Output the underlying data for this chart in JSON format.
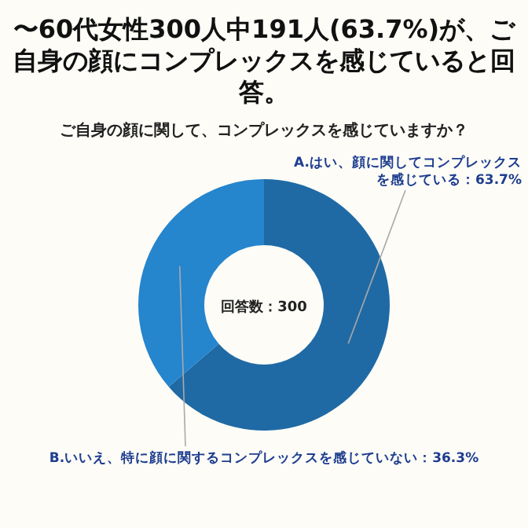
{
  "chart_data": {
    "type": "donut",
    "title": "〜60代女性300人中191人(63.7%)が、ご自身の顔にコンプレックスを感じていると回答。",
    "subtitle": "ご自身の顔に関して、コンプレックスを感じていますか？",
    "categories": [
      "A.はい、顔に関してコンプレックスを感じている：63.7%",
      "B.いいえ、特に顔に関するコンプレックスを感じていない：36.3%"
    ],
    "values": [
      63.7,
      36.3
    ],
    "colors": [
      "#1f6aa5",
      "#2585cd"
    ],
    "annotations": [
      "回答数：300"
    ]
  }
}
